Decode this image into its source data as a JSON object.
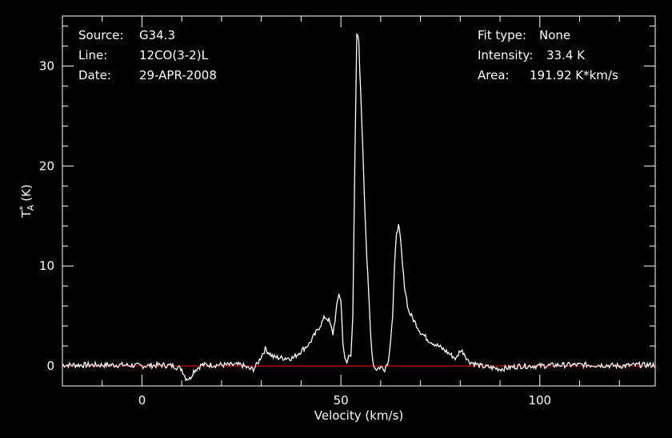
{
  "info": {
    "left": [
      {
        "label": "Source:",
        "value": "G34.3"
      },
      {
        "label": "Line:",
        "value": "12CO(3-2)L"
      },
      {
        "label": "Date:",
        "value": "29-APR-2008"
      }
    ],
    "right": [
      {
        "label": "Fit type:",
        "value": "None"
      },
      {
        "label": "Intensity:",
        "value": "33.4 K"
      },
      {
        "label": "Area:",
        "value": "191.92 K*km/s"
      }
    ]
  },
  "chart_data": {
    "type": "line",
    "xlabel": "Velocity (km/s)",
    "ylabel": "T",
    "ylabel_sup": "*",
    "ylabel_sub": "A",
    "ylabel_unit": "(K)",
    "xlim": [
      -20,
      129
    ],
    "ylim": [
      -2,
      35
    ],
    "xticks": [
      0,
      50,
      100
    ],
    "yticks": [
      0,
      10,
      20,
      30
    ],
    "baseline": 0,
    "colors": {
      "axes": "#ffffff",
      "line": "#ffffff",
      "baseline": "#cc0000",
      "background": "#000000"
    },
    "series": [
      {
        "x": [
          -20,
          -15,
          -10,
          -5,
          0,
          5,
          8,
          10,
          11,
          12,
          13,
          15,
          20,
          25,
          27,
          28,
          29,
          30,
          31,
          32,
          33,
          35,
          38,
          40,
          42,
          44,
          46,
          47,
          48,
          49,
          49.5,
          50,
          50.5,
          51,
          51.5,
          52,
          52.5,
          53,
          53.5,
          54,
          54.5,
          55,
          55.5,
          56,
          56.5,
          57,
          57.5,
          58,
          58.5,
          59,
          60,
          61,
          62,
          63,
          63.5,
          64,
          64.5,
          65,
          65.5,
          66,
          67,
          68,
          69,
          70,
          72,
          74,
          76,
          78,
          79,
          80,
          81,
          82,
          85,
          90,
          95,
          100,
          105,
          110,
          115,
          120,
          125,
          129
        ],
        "y": [
          0.1,
          0.1,
          0.1,
          0.1,
          0.0,
          0.1,
          0.0,
          -0.3,
          -1.2,
          -1.3,
          -0.5,
          0.1,
          0.1,
          0.1,
          -0.3,
          -0.3,
          0.2,
          1.0,
          1.7,
          1.3,
          0.9,
          0.8,
          0.8,
          1.5,
          2.2,
          3.5,
          4.9,
          4.6,
          3.2,
          6.0,
          7.3,
          6.5,
          2.5,
          0.6,
          0.3,
          1.0,
          1.2,
          5.0,
          20.0,
          33.2,
          32.5,
          27.0,
          22.0,
          16.0,
          11.0,
          7.0,
          3.0,
          0.6,
          -0.2,
          -0.3,
          -0.1,
          -0.3,
          0.6,
          5.0,
          10.0,
          13.5,
          14.0,
          12.5,
          10.0,
          8.0,
          5.5,
          4.8,
          4.1,
          3.4,
          2.6,
          2.1,
          1.6,
          1.0,
          0.7,
          1.6,
          1.3,
          0.5,
          0.0,
          -0.3,
          0.0,
          0.0,
          0.1,
          0.1,
          0.1,
          0.0,
          0.1,
          0.1
        ]
      }
    ]
  }
}
